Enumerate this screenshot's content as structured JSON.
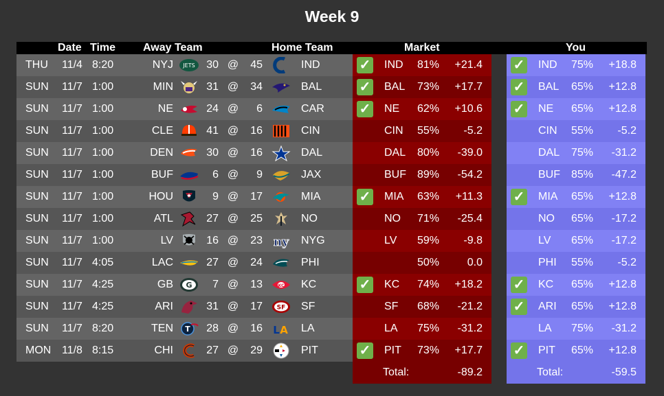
{
  "title": "Week 9",
  "headers": {
    "date": "Date",
    "time": "Time",
    "away": "Away Team",
    "home": "Home Team",
    "market": "Market",
    "you": "You"
  },
  "games": [
    {
      "day": "THU",
      "date": "11/4",
      "time": "8:20",
      "away": "NYJ",
      "away_score": "30",
      "at": "@",
      "home_score": "45",
      "home": "IND",
      "away_logo": "jets-logo-icon",
      "home_logo": "colts-logo-icon",
      "market": {
        "check": true,
        "team": "IND",
        "pct": "81%",
        "val": "+21.4"
      },
      "you": {
        "check": true,
        "team": "IND",
        "pct": "75%",
        "val": "+18.8"
      }
    },
    {
      "day": "SUN",
      "date": "11/7",
      "time": "1:00",
      "away": "MIN",
      "away_score": "31",
      "at": "@",
      "home_score": "34",
      "home": "BAL",
      "away_logo": "vikings-logo-icon",
      "home_logo": "ravens-logo-icon",
      "market": {
        "check": true,
        "team": "BAL",
        "pct": "73%",
        "val": "+17.7"
      },
      "you": {
        "check": true,
        "team": "BAL",
        "pct": "65%",
        "val": "+12.8"
      }
    },
    {
      "day": "SUN",
      "date": "11/7",
      "time": "1:00",
      "away": "NE",
      "away_score": "24",
      "at": "@",
      "home_score": "6",
      "home": "CAR",
      "away_logo": "patriots-logo-icon",
      "home_logo": "panthers-logo-icon",
      "market": {
        "check": true,
        "team": "NE",
        "pct": "62%",
        "val": "+10.6"
      },
      "you": {
        "check": true,
        "team": "NE",
        "pct": "65%",
        "val": "+12.8"
      }
    },
    {
      "day": "SUN",
      "date": "11/7",
      "time": "1:00",
      "away": "CLE",
      "away_score": "41",
      "at": "@",
      "home_score": "16",
      "home": "CIN",
      "away_logo": "browns-logo-icon",
      "home_logo": "bengals-logo-icon",
      "market": {
        "check": false,
        "team": "CIN",
        "pct": "55%",
        "val": "-5.2"
      },
      "you": {
        "check": false,
        "team": "CIN",
        "pct": "55%",
        "val": "-5.2"
      }
    },
    {
      "day": "SUN",
      "date": "11/7",
      "time": "1:00",
      "away": "DEN",
      "away_score": "30",
      "at": "@",
      "home_score": "16",
      "home": "DAL",
      "away_logo": "broncos-logo-icon",
      "home_logo": "cowboys-logo-icon",
      "market": {
        "check": false,
        "team": "DAL",
        "pct": "80%",
        "val": "-39.0"
      },
      "you": {
        "check": false,
        "team": "DAL",
        "pct": "75%",
        "val": "-31.2"
      }
    },
    {
      "day": "SUN",
      "date": "11/7",
      "time": "1:00",
      "away": "BUF",
      "away_score": "6",
      "at": "@",
      "home_score": "9",
      "home": "JAX",
      "away_logo": "bills-logo-icon",
      "home_logo": "jaguars-logo-icon",
      "market": {
        "check": false,
        "team": "BUF",
        "pct": "89%",
        "val": "-54.2"
      },
      "you": {
        "check": false,
        "team": "BUF",
        "pct": "85%",
        "val": "-47.2"
      }
    },
    {
      "day": "SUN",
      "date": "11/7",
      "time": "1:00",
      "away": "HOU",
      "away_score": "9",
      "at": "@",
      "home_score": "17",
      "home": "MIA",
      "away_logo": "texans-logo-icon",
      "home_logo": "dolphins-logo-icon",
      "market": {
        "check": true,
        "team": "MIA",
        "pct": "63%",
        "val": "+11.3"
      },
      "you": {
        "check": true,
        "team": "MIA",
        "pct": "65%",
        "val": "+12.8"
      }
    },
    {
      "day": "SUN",
      "date": "11/7",
      "time": "1:00",
      "away": "ATL",
      "away_score": "27",
      "at": "@",
      "home_score": "25",
      "home": "NO",
      "away_logo": "falcons-logo-icon",
      "home_logo": "saints-logo-icon",
      "market": {
        "check": false,
        "team": "NO",
        "pct": "71%",
        "val": "-25.4"
      },
      "you": {
        "check": false,
        "team": "NO",
        "pct": "65%",
        "val": "-17.2"
      }
    },
    {
      "day": "SUN",
      "date": "11/7",
      "time": "1:00",
      "away": "LV",
      "away_score": "16",
      "at": "@",
      "home_score": "23",
      "home": "NYG",
      "away_logo": "raiders-logo-icon",
      "home_logo": "giants-logo-icon",
      "market": {
        "check": false,
        "team": "LV",
        "pct": "59%",
        "val": "-9.8"
      },
      "you": {
        "check": false,
        "team": "LV",
        "pct": "65%",
        "val": "-17.2"
      }
    },
    {
      "day": "SUN",
      "date": "11/7",
      "time": "4:05",
      "away": "LAC",
      "away_score": "27",
      "at": "@",
      "home_score": "24",
      "home": "PHI",
      "away_logo": "chargers-logo-icon",
      "home_logo": "eagles-logo-icon",
      "market": {
        "check": false,
        "team": "",
        "pct": "50%",
        "val": "0.0"
      },
      "you": {
        "check": false,
        "team": "PHI",
        "pct": "55%",
        "val": "-5.2"
      }
    },
    {
      "day": "SUN",
      "date": "11/7",
      "time": "4:25",
      "away": "GB",
      "away_score": "7",
      "at": "@",
      "home_score": "13",
      "home": "KC",
      "away_logo": "packers-logo-icon",
      "home_logo": "chiefs-logo-icon",
      "market": {
        "check": true,
        "team": "KC",
        "pct": "74%",
        "val": "+18.2"
      },
      "you": {
        "check": true,
        "team": "KC",
        "pct": "65%",
        "val": "+12.8"
      }
    },
    {
      "day": "SUN",
      "date": "11/7",
      "time": "4:25",
      "away": "ARI",
      "away_score": "31",
      "at": "@",
      "home_score": "17",
      "home": "SF",
      "away_logo": "cardinals-logo-icon",
      "home_logo": "49ers-logo-icon",
      "market": {
        "check": false,
        "team": "SF",
        "pct": "68%",
        "val": "-21.2"
      },
      "you": {
        "check": true,
        "team": "ARI",
        "pct": "65%",
        "val": "+12.8"
      }
    },
    {
      "day": "SUN",
      "date": "11/7",
      "time": "8:20",
      "away": "TEN",
      "away_score": "28",
      "at": "@",
      "home_score": "16",
      "home": "LA",
      "away_logo": "titans-logo-icon",
      "home_logo": "rams-logo-icon",
      "market": {
        "check": false,
        "team": "LA",
        "pct": "75%",
        "val": "-31.2"
      },
      "you": {
        "check": false,
        "team": "LA",
        "pct": "75%",
        "val": "-31.2"
      }
    },
    {
      "day": "MON",
      "date": "11/8",
      "time": "8:15",
      "away": "CHI",
      "away_score": "27",
      "at": "@",
      "home_score": "29",
      "home": "PIT",
      "away_logo": "bears-logo-icon",
      "home_logo": "steelers-logo-icon",
      "market": {
        "check": true,
        "team": "PIT",
        "pct": "73%",
        "val": "+17.7"
      },
      "you": {
        "check": true,
        "team": "PIT",
        "pct": "65%",
        "val": "+12.8"
      }
    }
  ],
  "totals": {
    "market": {
      "label": "Total:",
      "value": "-89.2"
    },
    "you": {
      "label": "Total:",
      "value": "-59.5"
    }
  },
  "check_glyph": "✓",
  "colors": {
    "background": "#333333",
    "header": "#000000",
    "row_odd": "#646464",
    "row_even": "#565656",
    "market_odd": "#8a0000",
    "market_even": "#770000",
    "you_odd": "#8181f4",
    "you_even": "#7474ea",
    "check": "#6fb04a"
  }
}
